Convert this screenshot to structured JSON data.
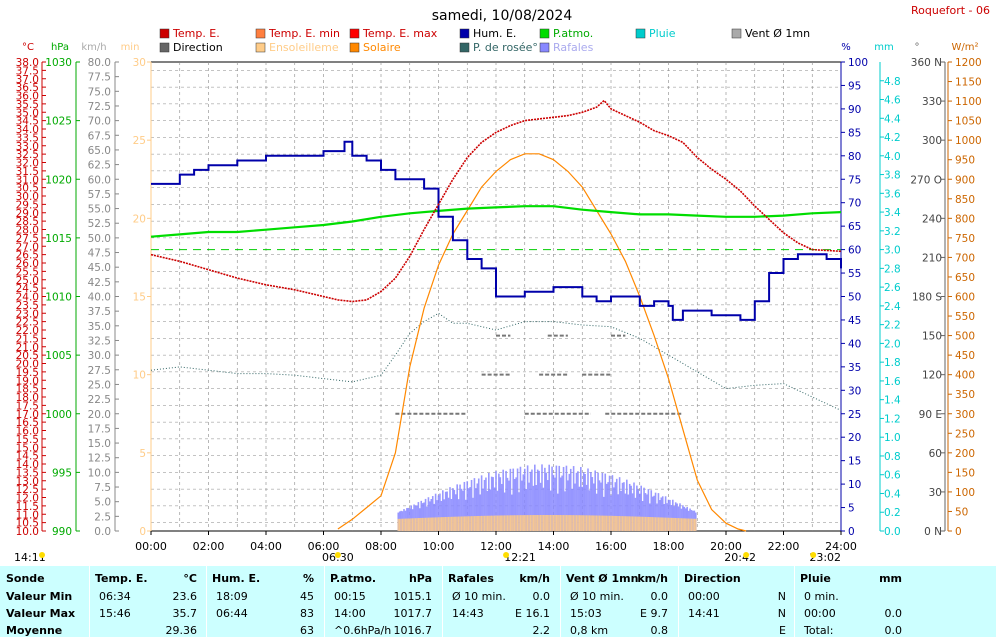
{
  "chart_data": {
    "type": "line",
    "title": "samedi, 10/08/2024",
    "station": "Roquefort - 06",
    "x_range": [
      "00:00",
      "24:00"
    ],
    "x_ticks": [
      "00:00",
      "02:00",
      "04:00",
      "06:00",
      "08:00",
      "10:00",
      "12:00",
      "14:00",
      "16:00",
      "18:00",
      "20:00",
      "22:00",
      "24:00"
    ],
    "sunrise": "06:30",
    "solar_noon": "12:21",
    "sunset": "20:42",
    "moonrise": "14:11",
    "moonset": "23:02",
    "legend": [
      {
        "label": "Temp. E.",
        "color": "#cc0000"
      },
      {
        "label": "Temp. E. min",
        "color": "#ff7f3f"
      },
      {
        "label": "Temp. E. max",
        "color": "#ff0000"
      },
      {
        "label": "Hum. E.",
        "color": "#0000aa"
      },
      {
        "label": "P.atmo.",
        "color": "#00dd00"
      },
      {
        "label": "Pluie",
        "color": "#00cccc"
      },
      {
        "label": "Vent Ø 1mn",
        "color": "#aaaaaa"
      },
      {
        "label": "Direction",
        "color": "#666666"
      },
      {
        "label": "Ensoleilleme",
        "color": "#ffcc88"
      },
      {
        "label": "Solaire",
        "color": "#ff8800"
      },
      {
        "label": "P. de rosée°",
        "color": "#336666"
      },
      {
        "label": "Rafales",
        "color": "#8888ff"
      }
    ],
    "axes": {
      "temp": {
        "unit": "°C",
        "min": 10,
        "max": 38,
        "step": 0.5,
        "ticks": [
          "10.0",
          "10.5",
          "11.0",
          "11.5",
          "12.0",
          "12.5",
          "13.0",
          "13.5",
          "14.0",
          "14.5",
          "15.0",
          "15.5",
          "16.0",
          "16.5",
          "17.0",
          "17.5",
          "18.0",
          "18.5",
          "19.0",
          "19.5",
          "20.0",
          "20.5",
          "21.0",
          "21.5",
          "22.0",
          "22.5",
          "23.0",
          "23.5",
          "24.0",
          "24.5",
          "25.0",
          "25.5",
          "26.0",
          "26.5",
          "27.0",
          "27.5",
          "28.0",
          "28.5",
          "29.0",
          "29.5",
          "30.0",
          "30.5",
          "31.0",
          "31.5",
          "32.0",
          "32.5",
          "33.0",
          "33.5",
          "34.0",
          "34.5",
          "35.0",
          "35.5",
          "36.0",
          "36.5",
          "37.0",
          "37.5",
          "38.0"
        ]
      },
      "pressure": {
        "unit": "hPa",
        "min": 990,
        "max": 1030,
        "ticks": [
          "990",
          "995",
          "1000",
          "1005",
          "1010",
          "1015",
          "1020",
          "1025",
          "1030"
        ]
      },
      "wind": {
        "unit": "km/h",
        "min": 0,
        "max": 80,
        "ticks": [
          "0.0",
          "2.5",
          "5.0",
          "7.5",
          "10.0",
          "12.5",
          "15.0",
          "17.5",
          "20.0",
          "22.5",
          "25.0",
          "27.5",
          "30.0",
          "32.5",
          "35.0",
          "37.5",
          "40.0",
          "42.5",
          "45.0",
          "47.5",
          "50.0",
          "52.5",
          "55.0",
          "57.5",
          "60.0",
          "62.5",
          "65.0",
          "67.5",
          "70.0",
          "72.5",
          "75.0",
          "77.5",
          "80.0"
        ]
      },
      "min_axis": {
        "unit": "min",
        "min": 0,
        "max": 30,
        "ticks": [
          "0",
          "5",
          "10",
          "15",
          "20",
          "25",
          "30"
        ]
      },
      "humidity": {
        "unit": "%",
        "min": 0,
        "max": 100,
        "ticks": [
          "0",
          "5",
          "10",
          "15",
          "20",
          "25",
          "30",
          "35",
          "40",
          "45",
          "50",
          "55",
          "60",
          "65",
          "70",
          "75",
          "80",
          "85",
          "90",
          "95",
          "100"
        ]
      },
      "rain": {
        "unit": "mm",
        "min": 0,
        "max": 5,
        "ticks": [
          "0.0",
          "0.2",
          "0.4",
          "0.6",
          "0.8",
          "1.0",
          "1.2",
          "1.4",
          "1.6",
          "1.8",
          "2.0",
          "2.2",
          "2.4",
          "2.6",
          "2.8",
          "3.0",
          "3.2",
          "3.4",
          "3.6",
          "3.8",
          "4.0",
          "4.2",
          "4.4",
          "4.6",
          "4.8"
        ]
      },
      "direction": {
        "unit": "°",
        "min": 0,
        "max": 360,
        "ticks": [
          "0 N",
          "30",
          "60",
          "90 E",
          "120",
          "150",
          "180 S",
          "210",
          "240",
          "270 O",
          "300",
          "330",
          "360 N"
        ]
      },
      "solar": {
        "unit": "W/m²",
        "min": 0,
        "max": 1200,
        "ticks": [
          "0",
          "50",
          "100",
          "150",
          "200",
          "250",
          "300",
          "350",
          "400",
          "450",
          "500",
          "550",
          "600",
          "650",
          "700",
          "750",
          "800",
          "850",
          "900",
          "950",
          "1000",
          "1050",
          "1100",
          "1150",
          "1200"
        ]
      }
    },
    "series": {
      "temp": {
        "x": [
          0,
          0.5,
          1,
          2,
          3,
          4,
          5,
          5.5,
          6,
          6.5,
          7,
          7.5,
          8,
          8.5,
          9,
          9.5,
          10,
          10.5,
          11,
          11.5,
          12,
          12.5,
          13,
          13.5,
          14,
          14.5,
          15,
          15.5,
          15.76,
          16,
          16.5,
          17,
          17.5,
          18,
          18.5,
          19,
          19.5,
          20,
          20.5,
          21,
          21.5,
          22,
          22.5,
          23,
          24
        ],
        "y": [
          26.5,
          26.3,
          26.1,
          25.6,
          25.1,
          24.7,
          24.4,
          24.2,
          24.0,
          23.8,
          23.7,
          23.8,
          24.3,
          25.1,
          26.4,
          28.0,
          29.5,
          31.0,
          32.3,
          33.2,
          33.8,
          34.2,
          34.5,
          34.6,
          34.7,
          34.8,
          35.0,
          35.3,
          35.7,
          35.2,
          34.8,
          34.4,
          33.9,
          33.6,
          33.2,
          32.3,
          31.6,
          31.0,
          30.3,
          29.4,
          28.6,
          27.8,
          27.2,
          26.8,
          26.7
        ]
      },
      "humidity": {
        "x": [
          0,
          0.5,
          1,
          1.5,
          2,
          2.5,
          3,
          3.5,
          4,
          4.5,
          5,
          5.5,
          6,
          6.5,
          6.73,
          7,
          7.5,
          8,
          8.5,
          9,
          9.5,
          10,
          10.5,
          11,
          11.5,
          12,
          12.5,
          13,
          13.5,
          14,
          14.5,
          15,
          15.5,
          16,
          16.5,
          17,
          17.5,
          18,
          18.15,
          18.5,
          19,
          19.5,
          20,
          20.5,
          21,
          21.5,
          22,
          22.5,
          23,
          23.5,
          24
        ],
        "y": [
          74,
          74,
          76,
          77,
          78,
          78,
          79,
          79,
          80,
          80,
          80,
          80,
          81,
          81,
          83,
          80,
          79,
          77,
          75,
          75,
          73,
          67,
          62,
          58,
          56,
          50,
          50,
          51,
          51,
          52,
          52,
          50,
          49,
          50,
          50,
          48,
          49,
          48,
          45,
          47,
          47,
          46,
          46,
          45,
          49,
          55,
          58,
          59,
          59,
          58,
          56
        ]
      },
      "pressure": {
        "x": [
          0,
          1,
          2,
          3,
          4,
          5,
          6,
          7,
          8,
          9,
          10,
          11,
          12,
          13,
          14,
          15,
          16,
          17,
          18,
          19,
          20,
          21,
          22,
          23,
          24
        ],
        "y": [
          1015.1,
          1015.3,
          1015.5,
          1015.5,
          1015.7,
          1015.9,
          1016.1,
          1016.4,
          1016.8,
          1017.1,
          1017.3,
          1017.5,
          1017.6,
          1017.7,
          1017.7,
          1017.4,
          1017.2,
          1017.0,
          1017.0,
          1016.9,
          1016.8,
          1016.8,
          1016.9,
          1017.1,
          1017.2
        ]
      },
      "dewpoint": {
        "x": [
          0,
          1,
          2,
          3,
          4,
          5,
          6,
          7,
          8,
          8.5,
          9,
          9.5,
          10,
          10.5,
          11,
          12,
          13,
          14,
          15,
          16,
          17,
          18,
          19,
          20,
          21,
          22,
          23,
          24
        ],
        "y": [
          19.6,
          19.8,
          19.6,
          19.4,
          19.4,
          19.3,
          19.1,
          18.9,
          19.3,
          20.5,
          21.8,
          22.5,
          23.0,
          22.4,
          22.4,
          22.0,
          22.5,
          22.5,
          22.3,
          22.2,
          21.5,
          20.5,
          19.5,
          18.5,
          18.7,
          18.8,
          18.0,
          17.2
        ]
      },
      "solar": {
        "x": [
          6.5,
          7,
          7.5,
          8,
          8.5,
          9,
          9.5,
          10,
          10.5,
          11,
          11.5,
          12,
          12.5,
          13,
          13.5,
          14,
          14.5,
          15,
          15.5,
          16,
          16.5,
          17,
          17.5,
          18,
          18.5,
          19,
          19.5,
          20,
          20.42,
          20.7
        ],
        "y": [
          5,
          30,
          60,
          90,
          200,
          420,
          570,
          680,
          760,
          820,
          880,
          920,
          950,
          965,
          965,
          950,
          920,
          880,
          820,
          760,
          690,
          600,
          500,
          390,
          260,
          130,
          55,
          20,
          5,
          0
        ]
      },
      "pressure_reference": 1014.0
    }
  },
  "table": {
    "headers": [
      {
        "key": "Sonde",
        "unit": ""
      },
      {
        "key": "Temp. E.",
        "unit": "°C"
      },
      {
        "key": "Hum. E.",
        "unit": "%"
      },
      {
        "key": "P.atmo.",
        "unit": "hPa"
      },
      {
        "key": "Rafales",
        "unit": "km/h"
      },
      {
        "key": "Vent Ø 1mn",
        "unit": "km/h"
      },
      {
        "key": "Direction",
        "unit": ""
      },
      {
        "key": "Pluie",
        "unit": "mm"
      }
    ],
    "rows": [
      {
        "label": "Valeur Min",
        "cells": [
          [
            "06:34",
            "23.6"
          ],
          [
            "18:09",
            "45"
          ],
          [
            "00:15",
            "1015.1"
          ],
          [
            "Ø 10 min.",
            "0.0"
          ],
          [
            "Ø 10 min.",
            "0.0"
          ],
          [
            "00:00",
            "N"
          ],
          [
            "0 min.",
            ""
          ]
        ]
      },
      {
        "label": "Valeur Max",
        "cells": [
          [
            "15:46",
            "35.7"
          ],
          [
            "06:44",
            "83"
          ],
          [
            "14:00",
            "1017.7"
          ],
          [
            "14:43",
            "E 16.1"
          ],
          [
            "15:03",
            "E 9.7"
          ],
          [
            "14:41",
            "N"
          ],
          [
            "00:00",
            "0.0"
          ]
        ]
      },
      {
        "label": "Moyenne",
        "cells": [
          [
            "",
            "29.36"
          ],
          [
            "",
            "63"
          ],
          [
            "^0.6hPa/h",
            "1016.7"
          ],
          [
            "",
            "2.2"
          ],
          [
            "0,8 km",
            "0.8"
          ],
          [
            "",
            "E"
          ],
          [
            "Total:",
            "0.0"
          ]
        ]
      }
    ]
  }
}
